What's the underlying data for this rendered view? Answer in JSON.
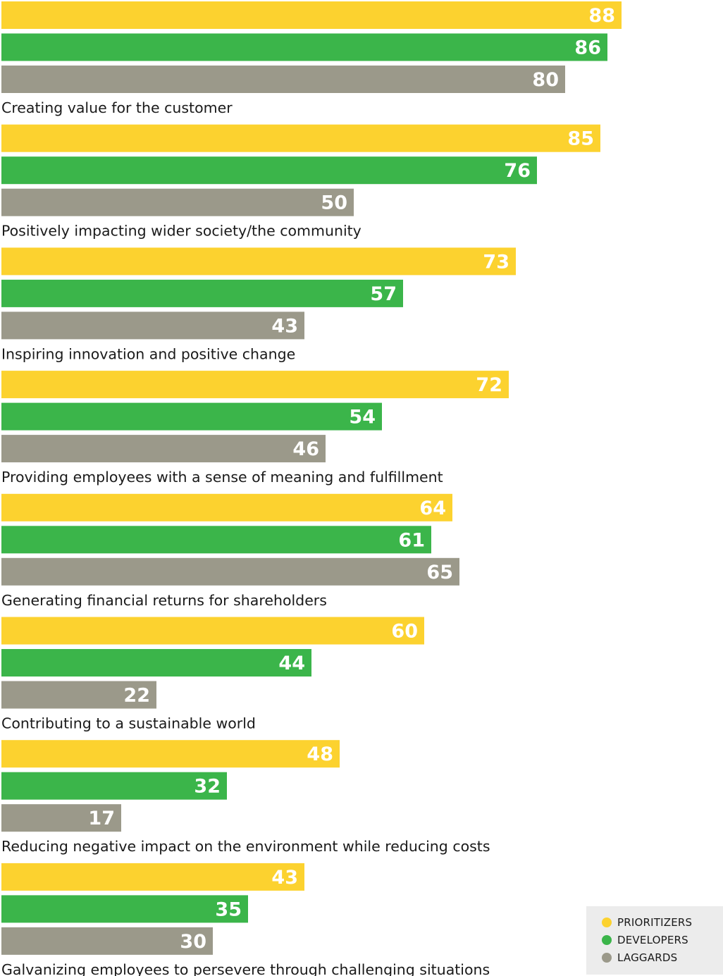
{
  "chart_data": {
    "type": "bar",
    "orientation": "horizontal",
    "categories": [
      "Creating value for the customer",
      "Positively impacting wider society/the community",
      "Inspiring innovation and positive change",
      "Providing employees with a sense of meaning and fulfillment",
      "Generating financial returns for shareholders",
      "Contributing to a sustainable world",
      "Reducing negative impact on the environment while reducing costs",
      "Galvanizing employees to persevere through challenging situations"
    ],
    "series": [
      {
        "name": "PRIORITIZERS",
        "color": "#fcd22f",
        "values": [
          88,
          85,
          73,
          72,
          64,
          60,
          48,
          43
        ]
      },
      {
        "name": "DEVELOPERS",
        "color": "#3bb54a",
        "values": [
          86,
          76,
          57,
          54,
          61,
          44,
          32,
          35
        ]
      },
      {
        "name": "LAGGARDS",
        "color": "#9b998a",
        "values": [
          80,
          50,
          43,
          46,
          65,
          22,
          17,
          30
        ]
      }
    ],
    "title": "",
    "xlabel": "",
    "ylabel": "",
    "xlim": [
      0,
      100
    ],
    "data_labels": true,
    "grid": false,
    "legend_position": "bottom-right"
  },
  "legend": {
    "items": [
      {
        "label": "PRIORITIZERS",
        "color": "#fcd22f"
      },
      {
        "label": "DEVELOPERS",
        "color": "#3bb54a"
      },
      {
        "label": "LAGGARDS",
        "color": "#9b998a"
      }
    ]
  }
}
